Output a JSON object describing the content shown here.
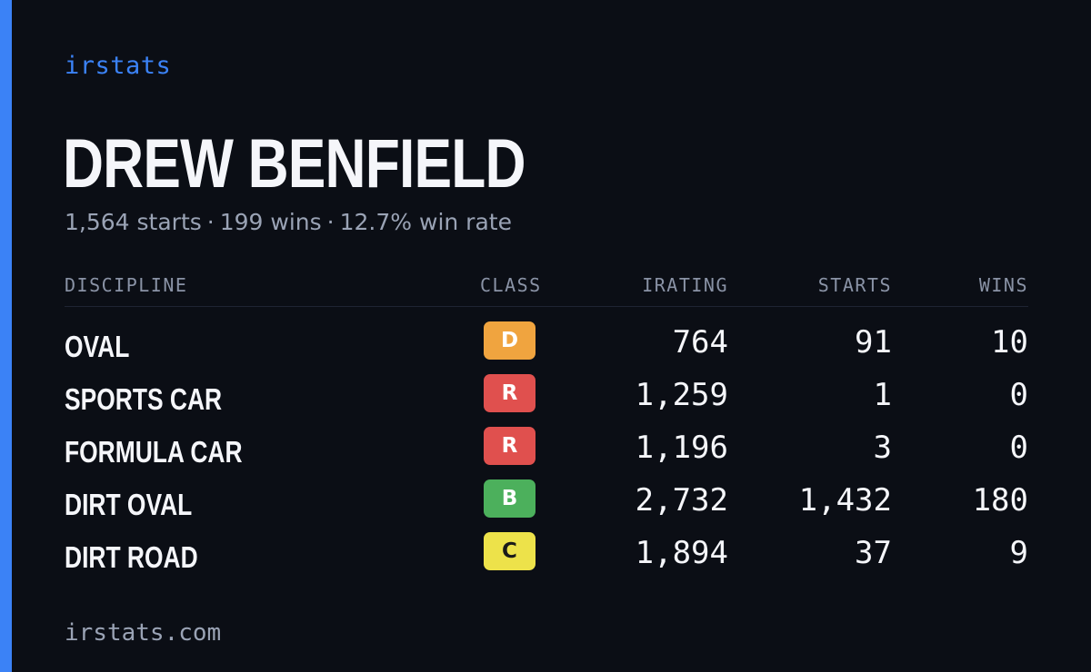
{
  "brand": "irstats",
  "driver": {
    "name": "DREW BENFIELD",
    "starts": "1,564 starts",
    "wins": "199 wins",
    "win_rate": "12.7% win rate",
    "separator": "·"
  },
  "table": {
    "headers": {
      "discipline": "DISCIPLINE",
      "class": "CLASS",
      "irating": "IRATING",
      "starts": "STARTS",
      "wins": "WINS"
    },
    "rows": [
      {
        "discipline": "OVAL",
        "class": "D",
        "class_color": "#f0a43f",
        "class_text_color": "#ffffff",
        "irating": "764",
        "starts": "91",
        "wins": "10"
      },
      {
        "discipline": "SPORTS CAR",
        "class": "R",
        "class_color": "#e0504e",
        "class_text_color": "#ffffff",
        "irating": "1,259",
        "starts": "1",
        "wins": "0"
      },
      {
        "discipline": "FORMULA CAR",
        "class": "R",
        "class_color": "#e0504e",
        "class_text_color": "#ffffff",
        "irating": "1,196",
        "starts": "3",
        "wins": "0"
      },
      {
        "discipline": "DIRT OVAL",
        "class": "B",
        "class_color": "#4cb05c",
        "class_text_color": "#ffffff",
        "irating": "2,732",
        "starts": "1,432",
        "wins": "180"
      },
      {
        "discipline": "DIRT ROAD",
        "class": "C",
        "class_color": "#ede24a",
        "class_text_color": "#1a1a1a",
        "irating": "1,894",
        "starts": "37",
        "wins": "9"
      }
    ]
  },
  "footer": "irstats.com",
  "colors": {
    "accent": "#3b82f6",
    "background": "#0b0e15"
  }
}
